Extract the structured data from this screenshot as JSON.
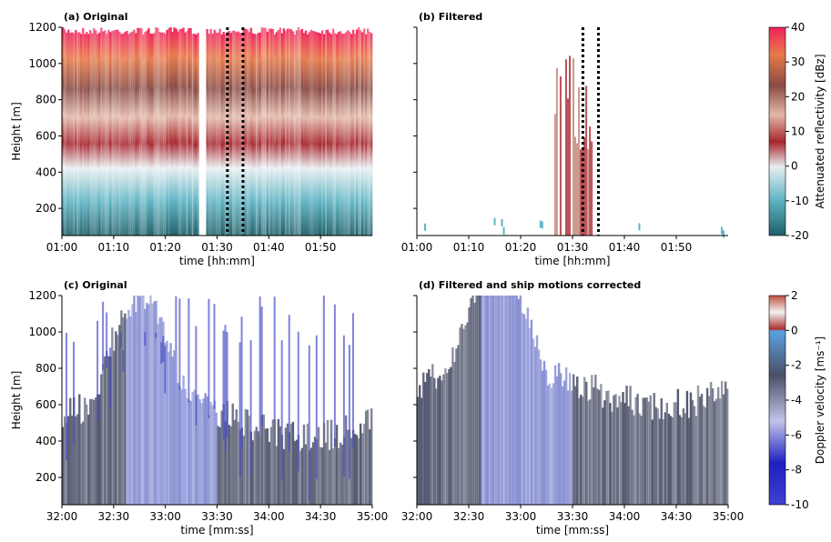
{
  "chart_data": [
    {
      "type": "heatmap",
      "title": "(a) Original",
      "xlabel": "time [hh:mm]",
      "ylabel": "Height   [m]",
      "xlim": [
        0,
        60
      ],
      "xticks": [
        {
          "value": 0,
          "label": "01:00"
        },
        {
          "value": 10,
          "label": "01:10"
        },
        {
          "value": 20,
          "label": "01:20"
        },
        {
          "value": 30,
          "label": "01:30"
        },
        {
          "value": 40,
          "label": "01:40"
        },
        {
          "value": 50,
          "label": "01:50"
        }
      ],
      "ylim": [
        50,
        1200
      ],
      "yticks": [
        200,
        400,
        600,
        800,
        1000,
        1200
      ],
      "vlines": [
        32,
        35
      ]
    },
    {
      "type": "heatmap",
      "title": "(b) Filtered",
      "xlabel": "time [hh:mm]",
      "xlim": [
        0,
        60
      ],
      "xticks": [
        {
          "value": 0,
          "label": "01:00"
        },
        {
          "value": 10,
          "label": "01:10"
        },
        {
          "value": 20,
          "label": "01:20"
        },
        {
          "value": 30,
          "label": "01:30"
        },
        {
          "value": 40,
          "label": "01:40"
        },
        {
          "value": 50,
          "label": "01:50"
        }
      ],
      "ylim": [
        50,
        1200
      ],
      "yticks": [
        200,
        400,
        600,
        800,
        1000,
        1200
      ],
      "vlines": [
        32,
        35
      ],
      "colorbar": {
        "label": "Attenuated reflectivity [dBz]",
        "lim": [
          -20,
          40
        ],
        "ticks": [
          -20,
          -10,
          0,
          10,
          20,
          30,
          40
        ]
      }
    },
    {
      "type": "heatmap",
      "title": "(c) Original",
      "xlabel": "time [mm:ss]",
      "ylabel": "Height   [m]",
      "xlim": [
        1920,
        2100
      ],
      "xticks": [
        {
          "value": 1920,
          "label": "32:00"
        },
        {
          "value": 1950,
          "label": "32:30"
        },
        {
          "value": 1980,
          "label": "33:00"
        },
        {
          "value": 2010,
          "label": "33:30"
        },
        {
          "value": 2040,
          "label": "34:00"
        },
        {
          "value": 2070,
          "label": "34:30"
        },
        {
          "value": 2100,
          "label": "35:00"
        }
      ],
      "ylim": [
        50,
        1200
      ],
      "yticks": [
        200,
        400,
        600,
        800,
        1000,
        1200
      ]
    },
    {
      "type": "heatmap",
      "title": "(d) Filtered and ship motions corrected",
      "xlabel": "time [mm:ss]",
      "xlim": [
        1920,
        2100
      ],
      "xticks": [
        {
          "value": 1920,
          "label": "32:00"
        },
        {
          "value": 1950,
          "label": "32:30"
        },
        {
          "value": 1980,
          "label": "33:00"
        },
        {
          "value": 2010,
          "label": "33:30"
        },
        {
          "value": 2040,
          "label": "34:00"
        },
        {
          "value": 2070,
          "label": "34:30"
        },
        {
          "value": 2100,
          "label": "35:00"
        }
      ],
      "ylim": [
        50,
        1200
      ],
      "yticks": [
        200,
        400,
        600,
        800,
        1000,
        1200
      ],
      "colorbar": {
        "label": "Doppler velocity [ms⁻¹]",
        "lim": [
          -10,
          2
        ],
        "ticks": [
          -10,
          -8,
          -6,
          -4,
          -2,
          0,
          2
        ]
      }
    }
  ]
}
